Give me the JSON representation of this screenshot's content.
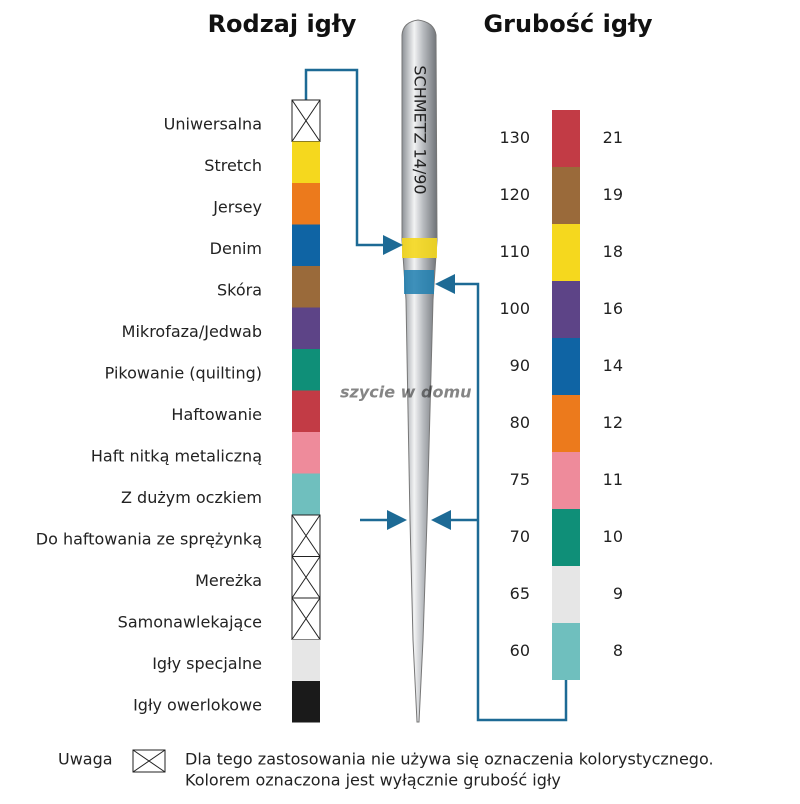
{
  "header": {
    "left_title": "Rodzaj igły",
    "right_title": "Grubość igły"
  },
  "needle": {
    "engraving": "SCHMETZ 14/90"
  },
  "watermark": "szycie w domu",
  "types": [
    {
      "label": "Uniwersalna",
      "color": null
    },
    {
      "label": "Stretch",
      "color": "#f5d81e"
    },
    {
      "label": "Jersey",
      "color": "#ec7a1c"
    },
    {
      "label": "Denim",
      "color": "#0f64a4"
    },
    {
      "label": "Skóra",
      "color": "#9a6a3a"
    },
    {
      "label": "Mikrofaza/Jedwab",
      "color": "#5d4487"
    },
    {
      "label": "Pikowanie (quilting)",
      "color": "#0f8f78"
    },
    {
      "label": "Haftowanie",
      "color": "#c23b45"
    },
    {
      "label": "Haft nitką metaliczną",
      "color": "#ee8b9b"
    },
    {
      "label": "Z dużym oczkiem",
      "color": "#6fbfbe"
    },
    {
      "label": "Do haftowania ze sprężynką",
      "color": null
    },
    {
      "label": "Mereżka",
      "color": null
    },
    {
      "label": "Samonawlekające",
      "color": null
    },
    {
      "label": "Igły specjalne",
      "color": "#e6e6e6"
    },
    {
      "label": "Igły owerlokowe",
      "color": "#1a1a1a"
    }
  ],
  "sizes": [
    {
      "nm": "130",
      "us": "21",
      "color": "#c23b45"
    },
    {
      "nm": "120",
      "us": "19",
      "color": "#9a6a3a"
    },
    {
      "nm": "110",
      "us": "18",
      "color": "#f5d81e"
    },
    {
      "nm": "100",
      "us": "16",
      "color": "#5d4487"
    },
    {
      "nm": "90",
      "us": "14",
      "color": "#0f64a4"
    },
    {
      "nm": "80",
      "us": "12",
      "color": "#ec7a1c"
    },
    {
      "nm": "75",
      "us": "11",
      "color": "#ee8b9b"
    },
    {
      "nm": "70",
      "us": "10",
      "color": "#0f8f78"
    },
    {
      "nm": "65",
      "us": "9",
      "color": "#e6e6e6"
    },
    {
      "nm": "60",
      "us": "8",
      "color": "#6fbfbe"
    }
  ],
  "note": {
    "label": "Uwaga",
    "line1": "Dla tego zastosowania nie używa się oznaczenia kolorystycznego.",
    "line2": "Kolorem oznaczona jest wyłącznie grubość igły"
  }
}
